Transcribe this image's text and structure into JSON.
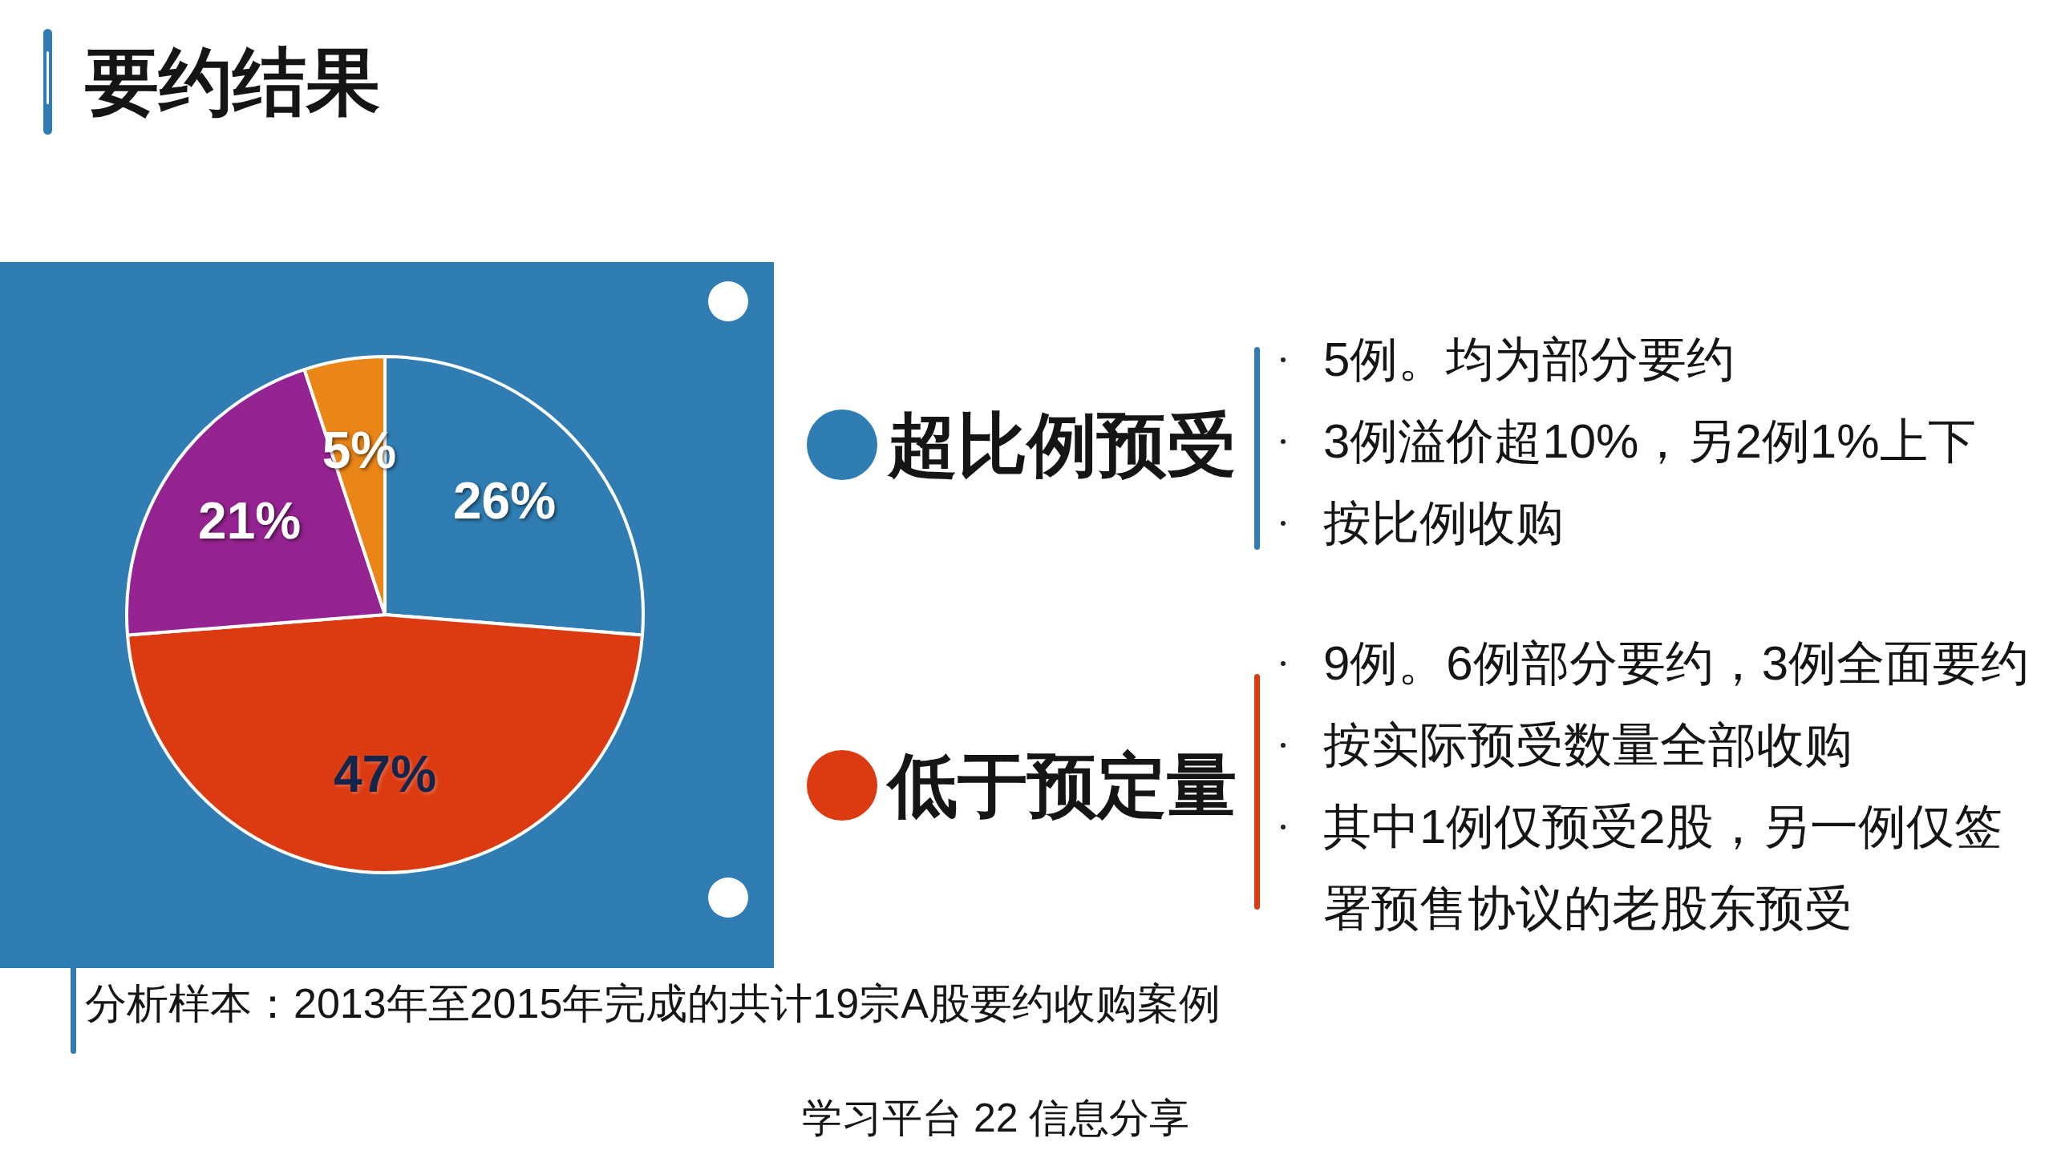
{
  "chart_data": {
    "type": "pie",
    "title": "要约结果",
    "categories": [
      "超比例预受",
      "低于预定量",
      null,
      null
    ],
    "values": [
      26,
      47,
      21,
      5
    ],
    "colors": [
      "#2f7db3",
      "#dc3a10",
      "#952391",
      "#ea8518"
    ],
    "value_labels": [
      "26%",
      "47%",
      "21%",
      "5%"
    ],
    "legend": "right",
    "annotations": [
      "5例。均为部分要约",
      "3例溢价超10%，另2例1%上下",
      "按比例收购",
      "9例。6例部分要约，3例全面要约",
      "按实际预受数量全部收购",
      "其中1例仅预受2股，另一例仅签署预售协议的老股东预受",
      "分析样本：2013年至2015年完成的共计19宗A股要约收购案例",
      "学习平台 22 信息分享"
    ]
  }
}
